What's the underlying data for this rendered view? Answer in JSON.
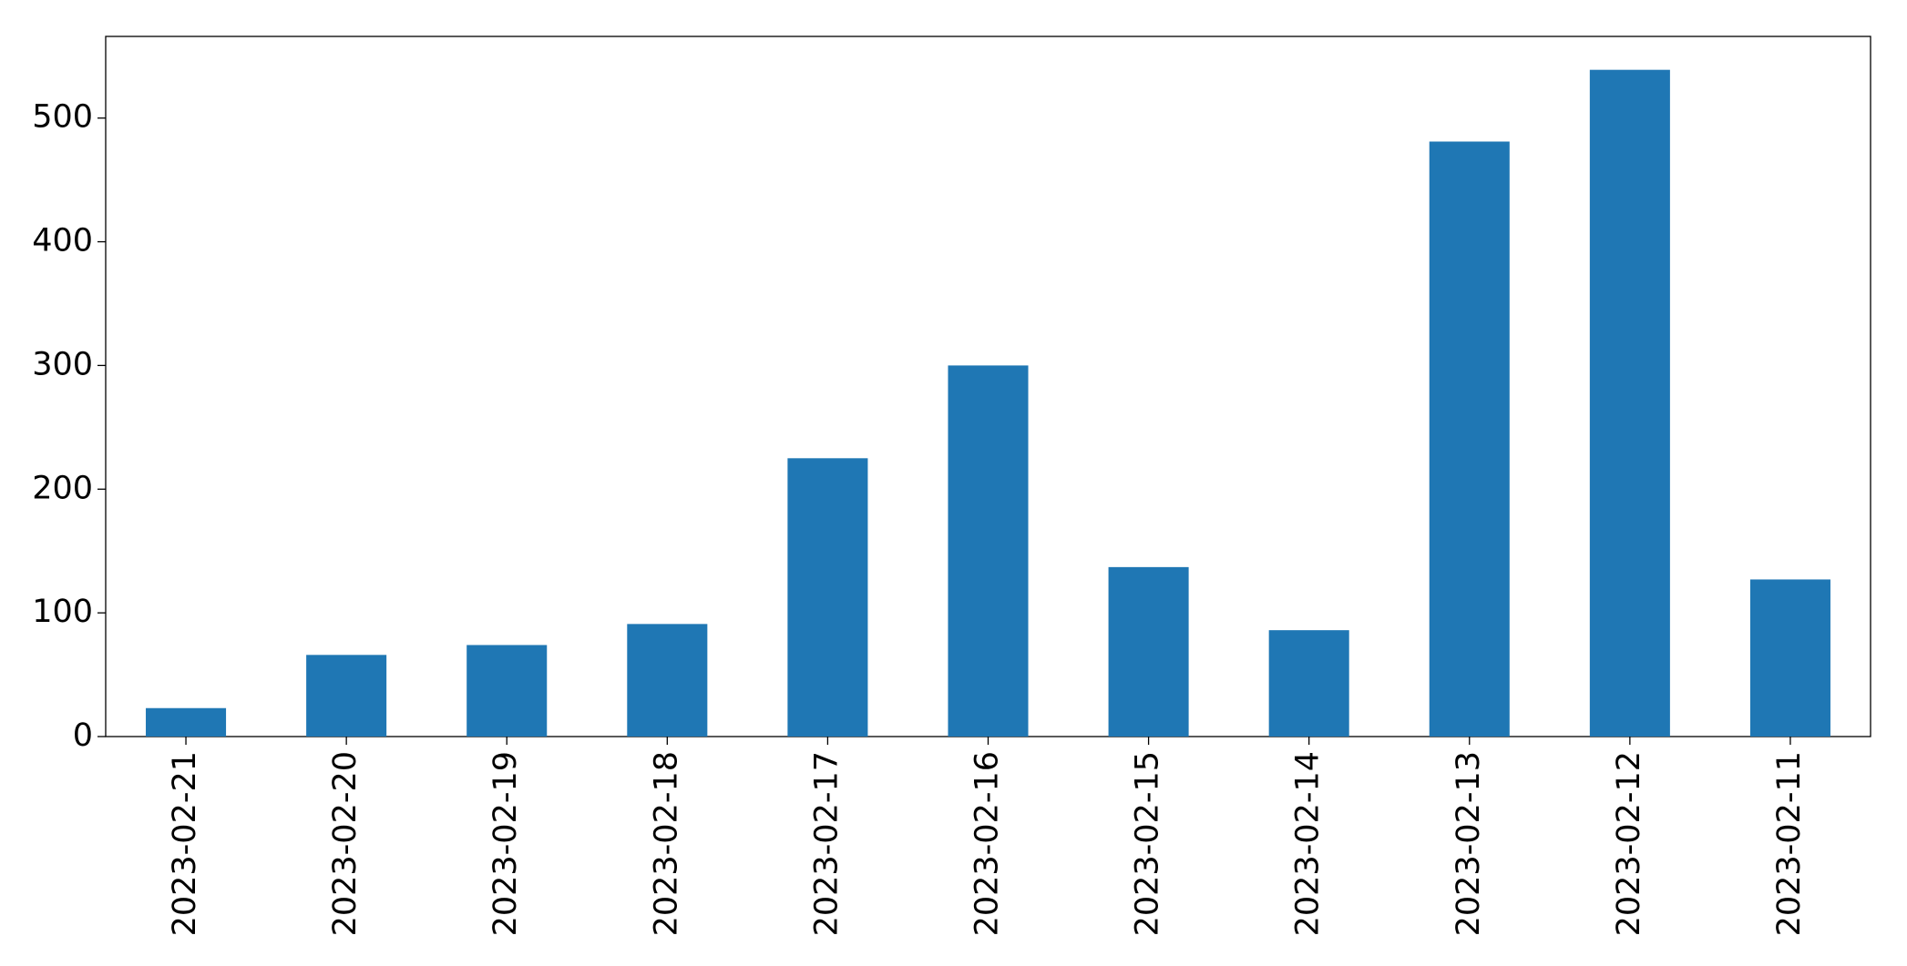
{
  "chart_data": {
    "type": "bar",
    "categories": [
      "2023-02-21",
      "2023-02-20",
      "2023-02-19",
      "2023-02-18",
      "2023-02-17",
      "2023-02-16",
      "2023-02-15",
      "2023-02-14",
      "2023-02-13",
      "2023-02-12",
      "2023-02-11"
    ],
    "values": [
      23,
      66,
      74,
      91,
      225,
      300,
      137,
      86,
      481,
      539,
      127
    ],
    "color": "#1f77b4",
    "ylim": [
      0,
      566
    ],
    "yticks": [
      0,
      100,
      200,
      300,
      400,
      500
    ],
    "grid": false
  }
}
